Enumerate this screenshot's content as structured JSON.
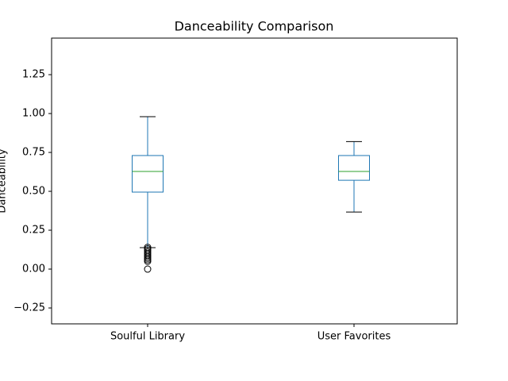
{
  "chart_data": {
    "type": "box",
    "title": "Danceability Comparison",
    "y_label": "Danceability",
    "categories": [
      "Soulful Library",
      "User Favorites"
    ],
    "boxes": [
      {
        "whislo": 0.138,
        "q1": 0.495,
        "med": 0.628,
        "q3": 0.73,
        "whishi": 0.98,
        "fliers": [
          0.14,
          0.13,
          0.12,
          0.11,
          0.1,
          0.09,
          0.08,
          0.07,
          0.06,
          0.05,
          0.0
        ]
      },
      {
        "whislo": 0.367,
        "q1": 0.571,
        "med": 0.628,
        "q3": 0.73,
        "whishi": 0.82,
        "fliers": []
      }
    ],
    "color": "#1f77b4",
    "median_color": "#2ca02c",
    "ylim": [
      -0.352,
      1.485
    ],
    "yticks": [
      {
        "value": -0.25,
        "label": "−0.25"
      },
      {
        "value": 0,
        "label": "0.00"
      },
      {
        "value": 0.25,
        "label": "0.25"
      },
      {
        "value": 0.5,
        "label": "0.50"
      },
      {
        "value": 0.75,
        "label": "0.75"
      },
      {
        "value": 1,
        "label": "1.00"
      },
      {
        "value": 1.25,
        "label": "1.25"
      }
    ],
    "grid": false
  }
}
